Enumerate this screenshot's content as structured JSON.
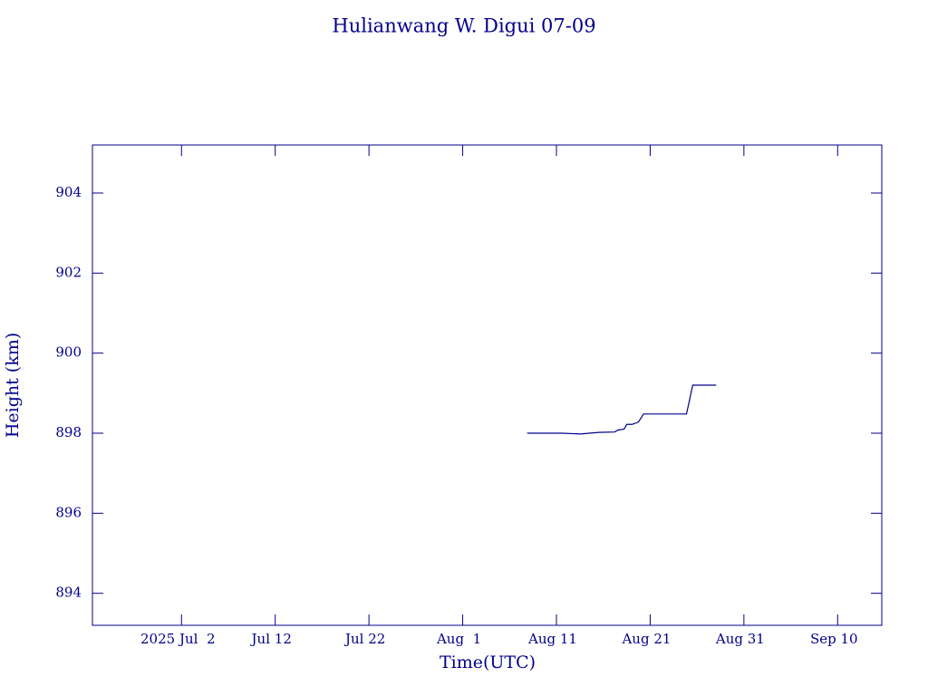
{
  "chart_data": {
    "type": "line",
    "title": "Hulianwang W. Digui 07-09",
    "x_label": "Time(UTC)",
    "y_label": "Height (km)",
    "x": [
      "2025-08-07T21:00",
      "2025-08-11T14:00",
      "2025-08-13T13:00",
      "2025-08-15T12:00",
      "2025-08-17T05:00",
      "2025-08-17T14:00",
      "2025-08-18T05:00",
      "2025-08-18T12:00",
      "2025-08-19T02:00",
      "2025-08-19T18:00",
      "2025-08-20T07:00",
      "2025-08-24T21:00",
      "2025-08-25T13:00",
      "2025-08-28T01:00"
    ],
    "series": [
      {
        "name": "Height",
        "color": "#00008b",
        "values": [
          898.0,
          898.0,
          897.98,
          898.02,
          898.03,
          898.08,
          898.1,
          898.22,
          898.22,
          898.28,
          898.48,
          898.48,
          899.2,
          899.2
        ]
      }
    ],
    "xlim": [
      "2025-06-22T12:00",
      "2025-09-14T17:00"
    ],
    "xticks": [
      {
        "value": "2025-07-02T00:00",
        "label": "2025 Jul  2"
      },
      {
        "value": "2025-07-12T00:00",
        "label": "Jul 12"
      },
      {
        "value": "2025-07-22T00:00",
        "label": "Jul 22"
      },
      {
        "value": "2025-08-01T00:00",
        "label": "Aug  1"
      },
      {
        "value": "2025-08-11T00:00",
        "label": "Aug 11"
      },
      {
        "value": "2025-08-21T00:00",
        "label": "Aug 21"
      },
      {
        "value": "2025-08-31T00:00",
        "label": "Aug 31"
      },
      {
        "value": "2025-09-10T00:00",
        "label": "Sep 10"
      }
    ],
    "ylim": [
      893.2,
      905.2
    ],
    "yticks": [
      894,
      896,
      898,
      900,
      902,
      904
    ],
    "grid": false
  }
}
